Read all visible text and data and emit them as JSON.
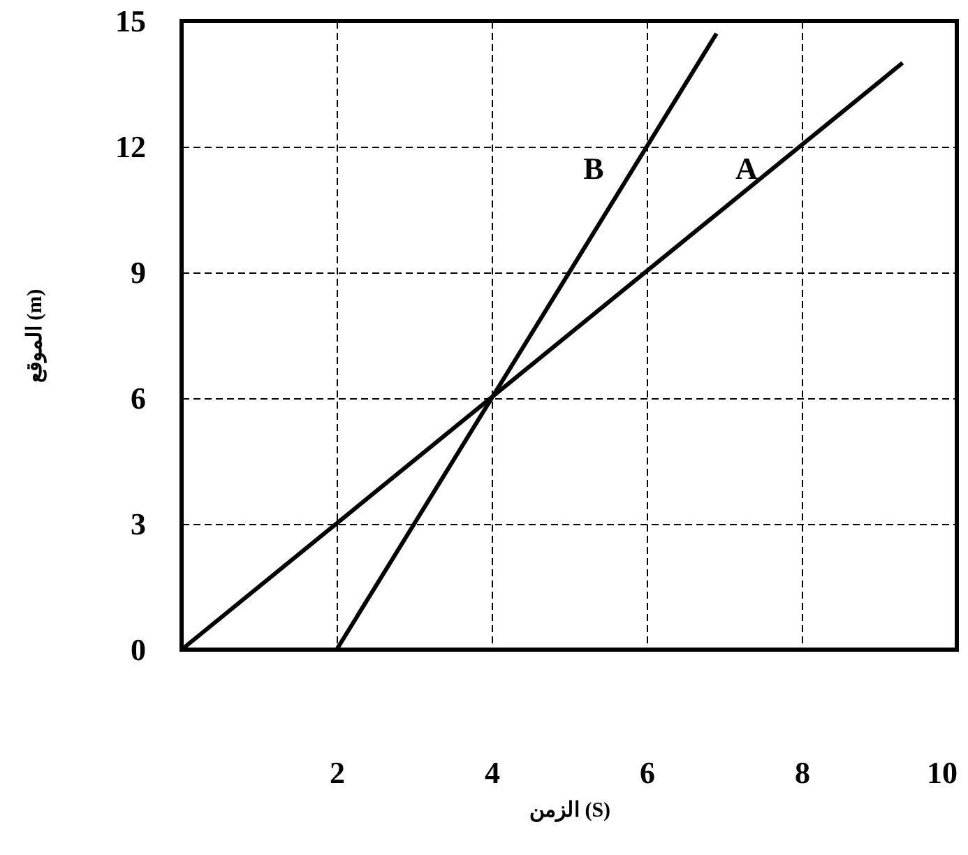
{
  "chart_data": {
    "type": "line",
    "xlabel": "الزمن (S)",
    "ylabel": "الموقع (m)",
    "series": [
      {
        "name": "A",
        "x": [
          0,
          9.3
        ],
        "values": [
          0,
          14
        ],
        "color": "#000000"
      },
      {
        "name": "B",
        "x": [
          2,
          6.9
        ],
        "values": [
          0,
          14.7
        ],
        "color": "#000000"
      }
    ],
    "xlim": [
      0,
      10
    ],
    "ylim": [
      0,
      15
    ],
    "xticks": [
      2,
      4,
      6,
      8,
      10
    ],
    "yticks": [
      0,
      3,
      6,
      9,
      12,
      15
    ],
    "grid": true,
    "marker": "none",
    "line_style": "solid"
  }
}
